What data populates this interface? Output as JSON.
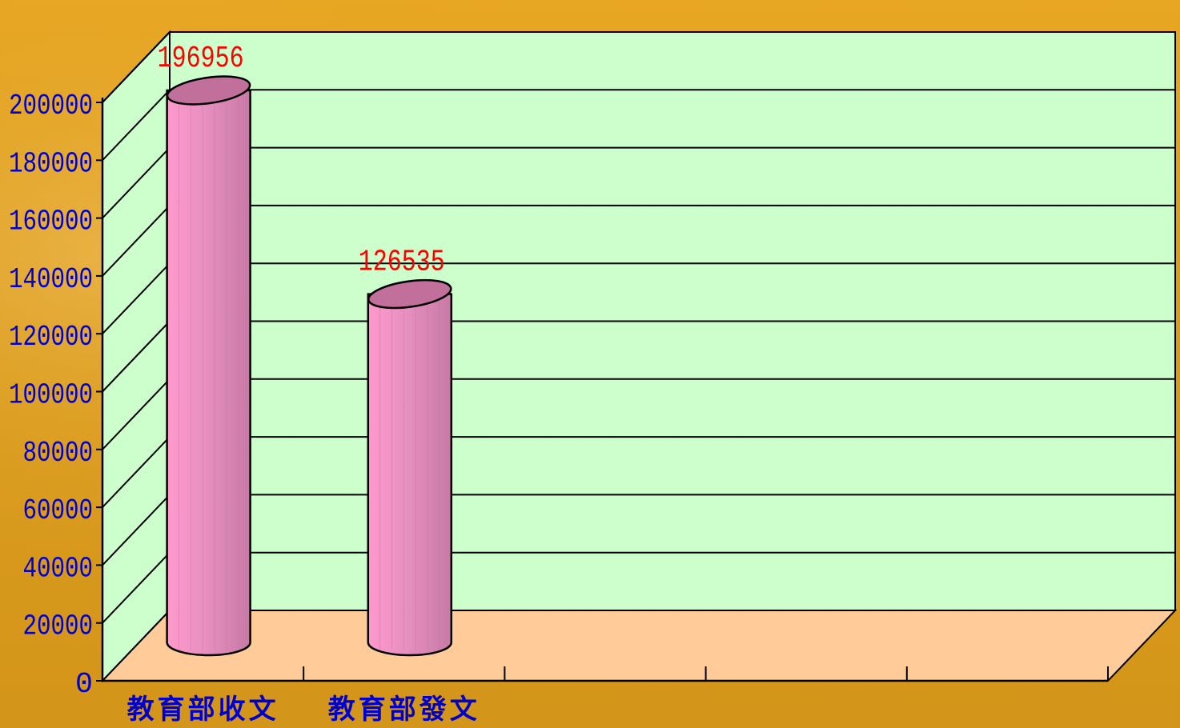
{
  "chart_data": {
    "type": "bar",
    "style": "3d-cylinder",
    "categories": [
      "教育部收文",
      "教育部發文"
    ],
    "values": [
      196956,
      126535
    ],
    "data_labels": [
      "196956",
      "126535"
    ],
    "yticks": [
      "0",
      "20000",
      "40000",
      "60000",
      "80000",
      "100000",
      "120000",
      "140000",
      "160000",
      "180000",
      "200000"
    ],
    "ylim": [
      0,
      200000
    ],
    "category_slots": 5,
    "title": "",
    "xlabel": "",
    "ylabel": "",
    "grid": true,
    "legend": "none",
    "colors": {
      "wall": "#ccffcc",
      "floor": "#ffcc99",
      "bar_light": "#ff99cc",
      "bar_dark": "#c77aa5",
      "bar_top": "#c0709a",
      "tick_label": "#0000cc",
      "category_label": "#0000cc",
      "data_label": "#ff0000",
      "background": "#e0a020"
    }
  }
}
